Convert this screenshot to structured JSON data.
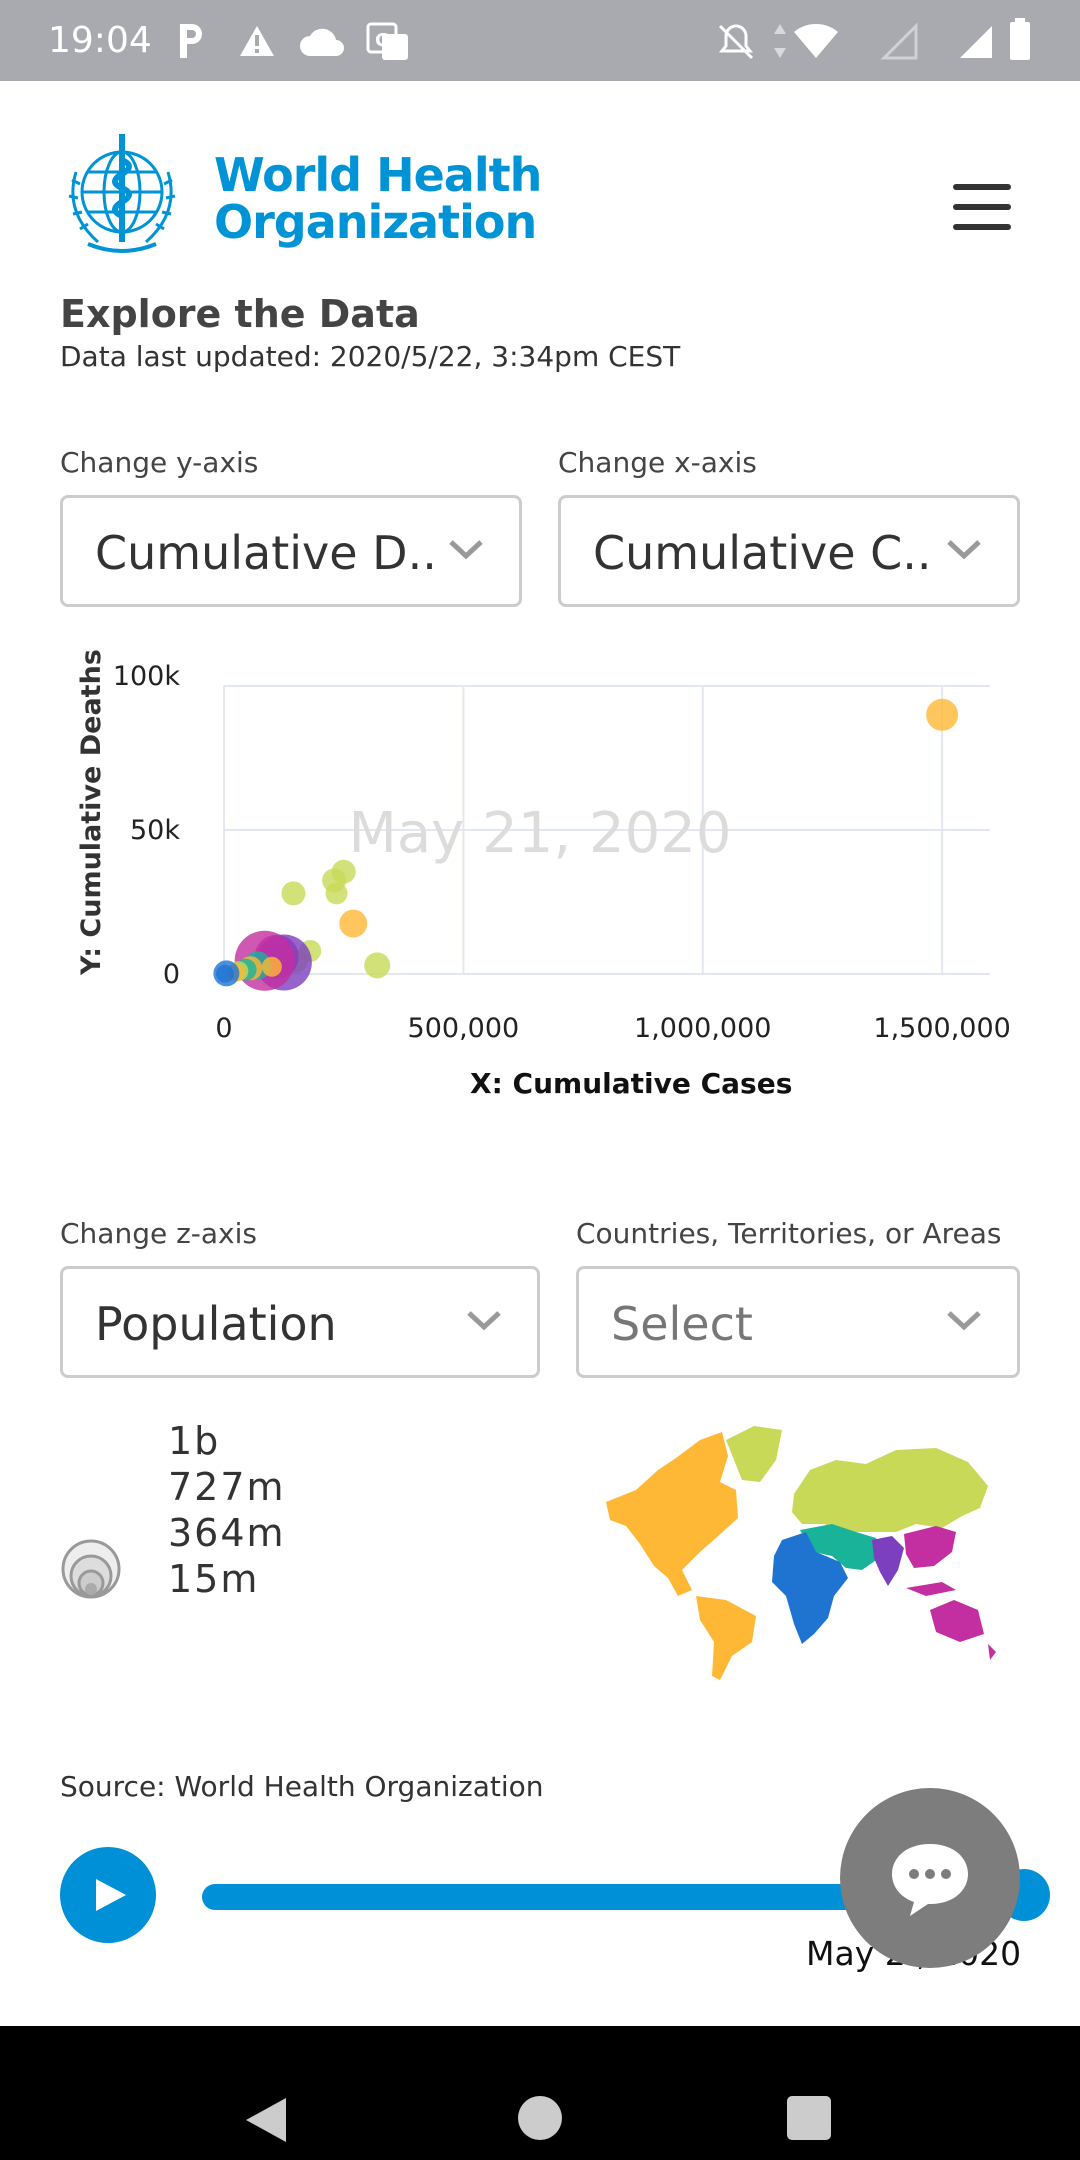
{
  "status_bar": {
    "time": "19:04",
    "icons": [
      "parking-icon",
      "warning-icon",
      "cloud-icon",
      "translate-icon",
      "notifications-off-icon",
      "data-arrows-icon",
      "wifi-icon",
      "signal-icon",
      "signal-off-icon",
      "battery-icon"
    ]
  },
  "header": {
    "logo_line1": "World Health",
    "logo_line2": "Organization",
    "menu_icon": "hamburger-menu-icon"
  },
  "page": {
    "title": "Explore the Data",
    "updated": "Data last updated: 2020/5/22, 3:34pm CEST"
  },
  "controls": {
    "y_axis_label": "Change y-axis",
    "y_axis_value": "Cumulative D...",
    "x_axis_label": "Change x-axis",
    "x_axis_value": "Cumulative C...",
    "z_axis_label": "Change z-axis",
    "z_axis_value": "Population",
    "country_label": "Countries, Territories, or Areas",
    "country_placeholder": "Select"
  },
  "chart_data": {
    "type": "scatter",
    "watermark": "May 21, 2020",
    "xlabel": "X: Cumulative Cases",
    "ylabel": "Y: Cumulative Deaths",
    "xlim": [
      0,
      1600000
    ],
    "ylim": [
      0,
      100000
    ],
    "x_ticks": [
      "0",
      "500,000",
      "1,000,000",
      "1,500,000"
    ],
    "y_ticks": [
      "0",
      "50k",
      "100k"
    ],
    "grid": true,
    "colors": {
      "americas": "#ffb835",
      "europe": "#c8d957",
      "africa": "#1f74d2",
      "eastern_mediterranean": "#19b39a",
      "south_east_asia": "#7b3fbf",
      "western_pacific": "#c32ea0"
    },
    "points": [
      {
        "x": 1500000,
        "y": 90000,
        "color": "americas",
        "r": 16
      },
      {
        "x": 270000,
        "y": 17500,
        "color": "americas",
        "r": 14
      },
      {
        "x": 250000,
        "y": 35500,
        "color": "europe",
        "r": 12
      },
      {
        "x": 230000,
        "y": 32500,
        "color": "europe",
        "r": 12
      },
      {
        "x": 235000,
        "y": 28000,
        "color": "europe",
        "r": 11
      },
      {
        "x": 145000,
        "y": 28000,
        "color": "europe",
        "r": 12
      },
      {
        "x": 320000,
        "y": 3000,
        "color": "europe",
        "r": 13
      },
      {
        "x": 180000,
        "y": 8000,
        "color": "europe",
        "r": 11
      },
      {
        "x": 150000,
        "y": 4500,
        "color": "europe",
        "r": 12
      },
      {
        "x": 110000,
        "y": 6000,
        "color": "western_pacific",
        "r": 22
      },
      {
        "x": 125000,
        "y": 4000,
        "color": "south_east_asia",
        "r": 28
      },
      {
        "x": 85000,
        "y": 4600,
        "color": "western_pacific",
        "r": 30
      },
      {
        "x": 70000,
        "y": 3000,
        "color": "eastern_mediterranean",
        "r": 14
      },
      {
        "x": 100000,
        "y": 2500,
        "color": "americas",
        "r": 10
      },
      {
        "x": 55000,
        "y": 2000,
        "color": "americas",
        "r": 12
      },
      {
        "x": 45000,
        "y": 1500,
        "color": "eastern_mediterranean",
        "r": 11
      },
      {
        "x": 30000,
        "y": 1000,
        "color": "europe",
        "r": 10
      },
      {
        "x": 25000,
        "y": 500,
        "color": "americas",
        "r": 9
      },
      {
        "x": 5000,
        "y": 200,
        "color": "africa",
        "r": 13
      },
      {
        "x": 2000,
        "y": 100,
        "color": "africa",
        "r": 9
      }
    ]
  },
  "size_legend": {
    "values": [
      "1b",
      "727m",
      "364m",
      "15m"
    ]
  },
  "map": {
    "region_colors": [
      "#ffb835",
      "#c8d957",
      "#1f74d2",
      "#19b39a",
      "#7b3fbf",
      "#c32ea0"
    ]
  },
  "source": {
    "text": "Source:  World Health Organization"
  },
  "timeline": {
    "date_label": "May 2 ,  2020",
    "progress": 1.0,
    "play_icon": "play-icon"
  },
  "chat": {
    "icon": "chat-bubble-icon"
  },
  "nav": {
    "icons": [
      "back-icon",
      "home-icon",
      "recents-icon"
    ]
  }
}
